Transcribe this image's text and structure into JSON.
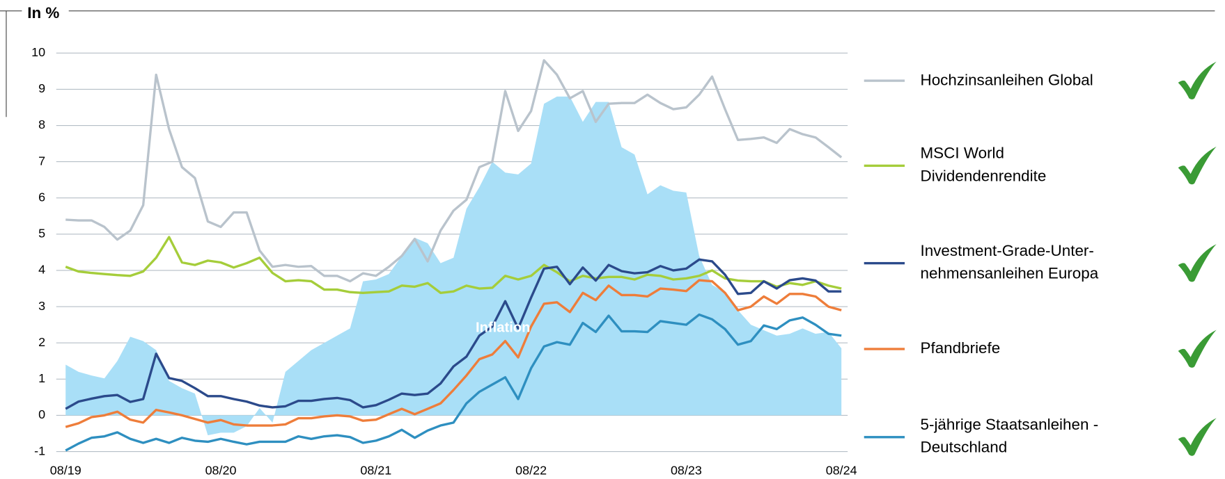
{
  "chart_data": {
    "type": "line",
    "title": "In %",
    "x": [
      "08/19",
      null,
      null,
      null,
      null,
      null,
      null,
      null,
      null,
      null,
      null,
      null,
      "08/20",
      null,
      null,
      null,
      null,
      null,
      null,
      null,
      null,
      null,
      null,
      null,
      "08/21",
      null,
      null,
      null,
      null,
      null,
      null,
      null,
      null,
      null,
      null,
      null,
      "08/22",
      null,
      null,
      null,
      null,
      null,
      null,
      null,
      null,
      null,
      null,
      null,
      "08/23",
      null,
      null,
      null,
      null,
      null,
      null,
      null,
      null,
      null,
      null,
      null,
      "08/24"
    ],
    "ylim": [
      -1,
      10
    ],
    "yticks": [
      -1,
      0,
      1,
      2,
      3,
      4,
      5,
      6,
      7,
      8,
      9,
      10
    ],
    "grid": true,
    "legend": "right",
    "series": [
      {
        "name": "Inflation",
        "type": "area",
        "color": "#a9dff7",
        "values": [
          1.4,
          1.2,
          1.1,
          1.02,
          1.5,
          2.17,
          2.05,
          1.8,
          0.95,
          0.75,
          0.6,
          -0.55,
          -0.48,
          -0.48,
          -0.3,
          0.2,
          -0.2,
          1.2,
          1.5,
          1.8,
          2.0,
          2.2,
          2.4,
          3.7,
          3.75,
          3.9,
          4.4,
          4.9,
          4.75,
          4.2,
          4.35,
          5.7,
          6.3,
          7.0,
          6.7,
          6.65,
          6.95,
          8.6,
          8.8,
          8.8,
          8.1,
          8.65,
          8.65,
          7.4,
          7.2,
          6.1,
          6.35,
          6.2,
          6.15,
          4.4,
          3.6,
          3.4,
          2.9,
          2.5,
          2.35,
          2.2,
          2.25,
          2.4,
          2.25,
          2.3,
          1.85
        ]
      },
      {
        "name": "Hochzinsanleihen Global",
        "type": "line",
        "color": "#b9c3cc",
        "values": [
          5.4,
          5.38,
          5.38,
          5.2,
          4.85,
          5.1,
          5.8,
          9.4,
          7.9,
          6.85,
          6.55,
          5.35,
          5.2,
          5.6,
          5.6,
          4.55,
          4.1,
          4.15,
          4.1,
          4.12,
          3.85,
          3.85,
          3.7,
          3.92,
          3.85,
          4.1,
          4.4,
          4.87,
          4.25,
          5.1,
          5.65,
          5.95,
          6.85,
          7.0,
          8.95,
          7.85,
          8.4,
          9.8,
          9.4,
          8.75,
          8.95,
          8.1,
          8.6,
          8.62,
          8.62,
          8.85,
          8.62,
          8.45,
          8.5,
          8.85,
          9.35,
          8.45,
          7.6,
          7.63,
          7.67,
          7.52,
          7.9,
          7.76,
          7.67,
          7.4,
          7.12
        ]
      },
      {
        "name": "MSCI World Dividendenrendite",
        "type": "line",
        "color": "#a5cd3a",
        "values": [
          4.1,
          3.97,
          3.93,
          3.9,
          3.87,
          3.85,
          3.97,
          4.35,
          4.92,
          4.22,
          4.15,
          4.27,
          4.22,
          4.08,
          4.2,
          4.35,
          3.93,
          3.7,
          3.73,
          3.7,
          3.47,
          3.47,
          3.4,
          3.38,
          3.4,
          3.42,
          3.58,
          3.55,
          3.65,
          3.38,
          3.42,
          3.58,
          3.5,
          3.52,
          3.85,
          3.75,
          3.85,
          4.15,
          3.95,
          3.7,
          3.85,
          3.78,
          3.82,
          3.82,
          3.75,
          3.88,
          3.85,
          3.75,
          3.78,
          3.85,
          4.0,
          3.78,
          3.72,
          3.7,
          3.7,
          3.55,
          3.65,
          3.6,
          3.7,
          3.58,
          3.5
        ]
      },
      {
        "name": "Investment-Grade-Unter-nehmensanleihen Europa",
        "type": "line",
        "color": "#2b4a8b",
        "values": [
          0.18,
          0.38,
          0.46,
          0.53,
          0.56,
          0.37,
          0.45,
          1.7,
          1.03,
          0.95,
          0.75,
          0.53,
          0.53,
          0.45,
          0.38,
          0.27,
          0.22,
          0.25,
          0.4,
          0.4,
          0.45,
          0.48,
          0.42,
          0.22,
          0.28,
          0.43,
          0.6,
          0.56,
          0.6,
          0.88,
          1.35,
          1.62,
          2.2,
          2.45,
          3.15,
          2.4,
          3.25,
          4.05,
          4.1,
          3.62,
          4.08,
          3.72,
          4.15,
          3.98,
          3.92,
          3.95,
          4.12,
          4.0,
          4.05,
          4.3,
          4.25,
          3.88,
          3.35,
          3.38,
          3.7,
          3.5,
          3.73,
          3.78,
          3.72,
          3.42,
          3.42
        ]
      },
      {
        "name": "Pfandbriefe",
        "type": "line",
        "color": "#ee7d3a",
        "values": [
          -0.32,
          -0.22,
          -0.05,
          0.0,
          0.1,
          -0.12,
          -0.2,
          0.15,
          0.08,
          0.0,
          -0.1,
          -0.2,
          -0.13,
          -0.25,
          -0.28,
          -0.28,
          -0.28,
          -0.25,
          -0.08,
          -0.08,
          -0.03,
          0.0,
          -0.03,
          -0.15,
          -0.12,
          0.03,
          0.18,
          0.03,
          0.18,
          0.33,
          0.7,
          1.1,
          1.55,
          1.68,
          2.05,
          1.6,
          2.45,
          3.08,
          3.12,
          2.85,
          3.38,
          3.18,
          3.58,
          3.32,
          3.32,
          3.28,
          3.5,
          3.47,
          3.43,
          3.73,
          3.7,
          3.38,
          2.9,
          3.0,
          3.28,
          3.08,
          3.35,
          3.35,
          3.28,
          3.0,
          2.9
        ]
      },
      {
        "name": "5-jährige Staatsanleihen - Deutschland",
        "type": "line",
        "color": "#2e8fc0",
        "values": [
          -0.97,
          -0.78,
          -0.62,
          -0.58,
          -0.47,
          -0.65,
          -0.76,
          -0.65,
          -0.76,
          -0.62,
          -0.7,
          -0.73,
          -0.65,
          -0.73,
          -0.8,
          -0.73,
          -0.73,
          -0.73,
          -0.58,
          -0.65,
          -0.58,
          -0.55,
          -0.6,
          -0.76,
          -0.7,
          -0.58,
          -0.4,
          -0.62,
          -0.42,
          -0.28,
          -0.2,
          0.33,
          0.65,
          0.85,
          1.05,
          0.45,
          1.3,
          1.9,
          2.02,
          1.95,
          2.55,
          2.3,
          2.75,
          2.32,
          2.32,
          2.3,
          2.6,
          2.55,
          2.5,
          2.78,
          2.65,
          2.38,
          1.95,
          2.05,
          2.48,
          2.38,
          2.62,
          2.7,
          2.5,
          2.25,
          2.2
        ]
      }
    ]
  }
}
